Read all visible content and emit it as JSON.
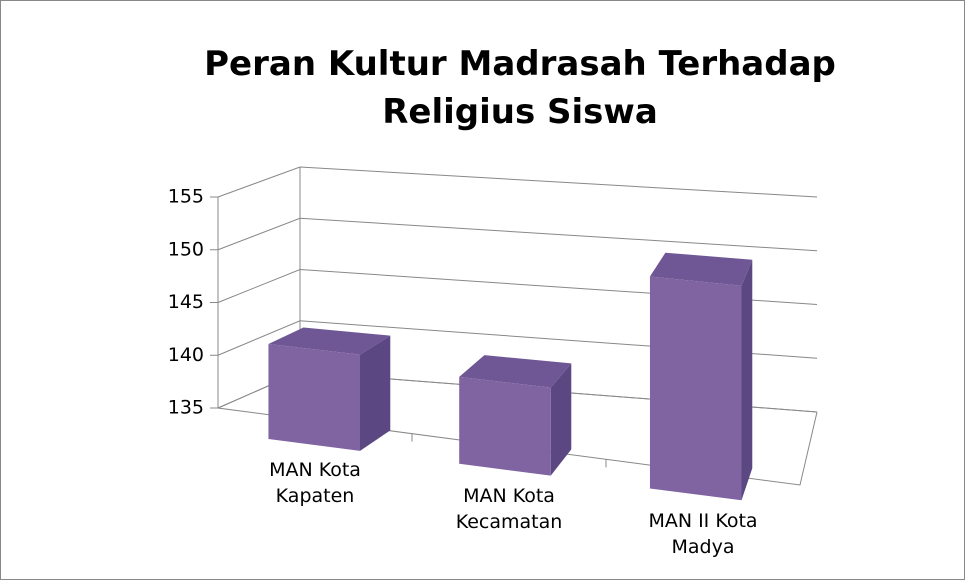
{
  "chart_data": {
    "type": "bar3d",
    "title": "Peran Kultur Madrasah Terhadap Religius Siswa",
    "categories": [
      "MAN Kota Kapaten",
      "MAN Kota Kecamatan",
      "MAN II Kota Madya"
    ],
    "values": [
      141,
      140,
      151
    ],
    "color": "#8064a2",
    "ylim": [
      135,
      155
    ],
    "yticks": [
      135,
      140,
      145,
      150,
      155
    ],
    "grid": true
  }
}
